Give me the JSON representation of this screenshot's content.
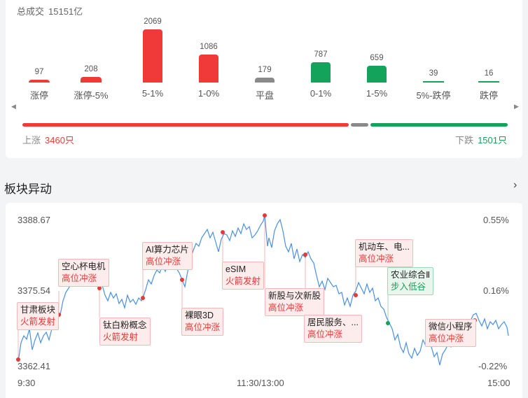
{
  "market": {
    "total_label": "总成交",
    "total_value": "15151亿",
    "buckets": [
      {
        "label": "涨停",
        "count": 97,
        "color": "#f03a3a"
      },
      {
        "label": "涨停-5%",
        "count": 208,
        "color": "#f03a3a"
      },
      {
        "label": "5-1%",
        "count": 2069,
        "color": "#f03a3a"
      },
      {
        "label": "1-0%",
        "count": 1086,
        "color": "#f03a3a"
      },
      {
        "label": "平盘",
        "count": 179,
        "color": "#8a8a8a"
      },
      {
        "label": "0-1%",
        "count": 787,
        "color": "#14a35a"
      },
      {
        "label": "1-5%",
        "count": 659,
        "color": "#14a35a"
      },
      {
        "label": "5%-跌停",
        "count": 39,
        "color": "#14a35a"
      },
      {
        "label": "跌停",
        "count": 16,
        "color": "#14a35a"
      }
    ],
    "up_label": "上涨",
    "up_value": "3460只",
    "down_label": "下跌",
    "down_value": "1501只",
    "up_count": 3460,
    "flat_count": 179,
    "down_count": 1501
  },
  "section": {
    "title": "板块异动",
    "arrow": "›"
  },
  "chart": {
    "y_left": [
      "3388.67",
      "3375.54",
      "3362.41"
    ],
    "y_right": [
      "0.55%",
      "0.16%",
      "-0.22%"
    ],
    "x_labels": [
      "9:30",
      "11:30/13:00",
      "15:00"
    ],
    "line_color": "#4a90e2",
    "events": [
      {
        "name": "甘肃板块",
        "tag": "火箭发射",
        "tone": "red"
      },
      {
        "name": "空心杯电机",
        "tag": "高位冲涨",
        "tone": "red"
      },
      {
        "name": "钛白粉概念",
        "tag": "火箭发射",
        "tone": "red"
      },
      {
        "name": "AI算力芯片",
        "tag": "高位冲涨",
        "tone": "red"
      },
      {
        "name": "裸眼3D",
        "tag": "高位冲涨",
        "tone": "red"
      },
      {
        "name": "eSIM",
        "tag": "火箭发射",
        "tone": "red"
      },
      {
        "name": "新股与次新股",
        "tag": "高位冲涨",
        "tone": "red"
      },
      {
        "name": "居民服务、...",
        "tag": "高位冲涨",
        "tone": "red"
      },
      {
        "name": "机动车、电...",
        "tag": "高位冲涨",
        "tone": "red"
      },
      {
        "name": "农业综合Ⅱ",
        "tag": "步入低谷",
        "tone": "green"
      },
      {
        "name": "微信小程序",
        "tag": "高位冲涨",
        "tone": "red"
      }
    ]
  }
}
